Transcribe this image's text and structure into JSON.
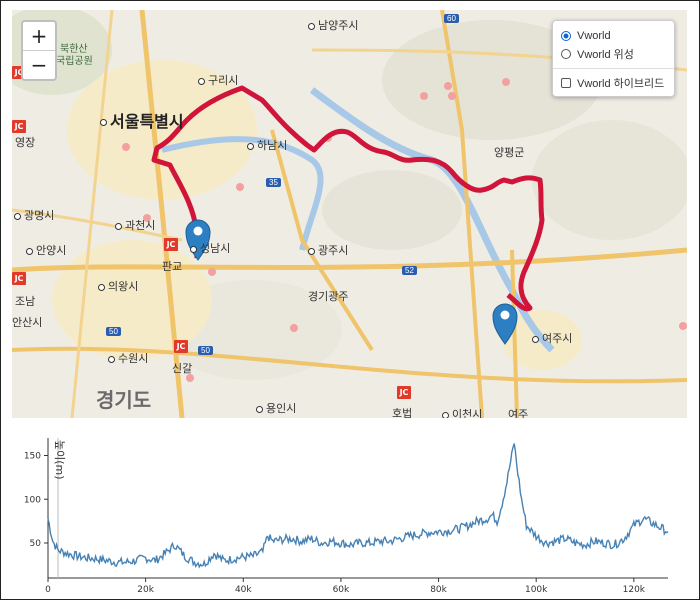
{
  "map": {
    "zoom_in": "+",
    "zoom_out": "−",
    "layers": [
      {
        "label": "Vworld",
        "type": "radio",
        "checked": true
      },
      {
        "label": "Vworld 위성",
        "type": "radio",
        "checked": false
      },
      {
        "label": "Vworld 하이브리드",
        "type": "checkbox",
        "checked": false
      }
    ],
    "labels": {
      "namyangju": "남양주시",
      "bukhansan": "북한산",
      "bukhansan2": "국립공원",
      "guri": "구리시",
      "seoul": "서울특별시",
      "yeongjang": "영장",
      "hanam": "하남시",
      "yangpyeong": "양평군",
      "gwangmyeong": "광명시",
      "gwacheon": "과천시",
      "seongnam": "성남시",
      "gwangju": "광주시",
      "anyang": "안양시",
      "pangyo": "판교",
      "uiwang": "의왕시",
      "gyeonggi_gwangju": "경기광주",
      "ansan": "안산시",
      "suwon": "수원시",
      "yeoju": "여주시",
      "singal": "신갈",
      "gyeonggido": "경기도",
      "yongin": "용인시",
      "hobeop": "호법",
      "icheon": "이천시",
      "yeoju2": "여주",
      "jb": "조남"
    },
    "road_badges": {
      "r60": "60",
      "r35": "35",
      "r52": "52",
      "r50a": "50",
      "r50b": "50"
    },
    "jc_label": "JC"
  },
  "chart_data": {
    "type": "line",
    "ylabel": "높이(m)",
    "x_ticks": [
      "0",
      "20k",
      "40k",
      "60k",
      "80k",
      "100k",
      "120k"
    ],
    "y_ticks": [
      "50",
      "100",
      "150"
    ],
    "xlim": [
      0,
      127000
    ],
    "ylim": [
      10,
      170
    ],
    "x": [
      0,
      1000,
      2000,
      4000,
      6000,
      8000,
      10000,
      12000,
      14000,
      16000,
      18000,
      20000,
      22000,
      24000,
      26000,
      28000,
      30000,
      32000,
      34000,
      36000,
      38000,
      40000,
      42000,
      44000,
      45000,
      46000,
      48000,
      50000,
      52000,
      54000,
      56000,
      58000,
      60000,
      62000,
      64000,
      66000,
      68000,
      70000,
      72000,
      74000,
      76000,
      78000,
      80000,
      82000,
      84000,
      86000,
      88000,
      90000,
      91000,
      92000,
      93000,
      94000,
      95000,
      95500,
      96000,
      97000,
      98000,
      100000,
      102000,
      104000,
      106000,
      108000,
      110000,
      112000,
      114000,
      116000,
      118000,
      120000,
      122000,
      124000,
      126000,
      127000
    ],
    "y": [
      78,
      52,
      42,
      38,
      35,
      33,
      32,
      30,
      28,
      28,
      30,
      33,
      30,
      38,
      48,
      35,
      28,
      26,
      38,
      30,
      32,
      34,
      35,
      40,
      58,
      52,
      54,
      55,
      52,
      55,
      50,
      52,
      50,
      48,
      50,
      50,
      52,
      52,
      55,
      58,
      60,
      62,
      63,
      64,
      66,
      70,
      75,
      78,
      82,
      75,
      95,
      120,
      150,
      165,
      140,
      100,
      70,
      58,
      50,
      52,
      55,
      50,
      48,
      52,
      50,
      48,
      55,
      70,
      78,
      72,
      66,
      63
    ]
  }
}
